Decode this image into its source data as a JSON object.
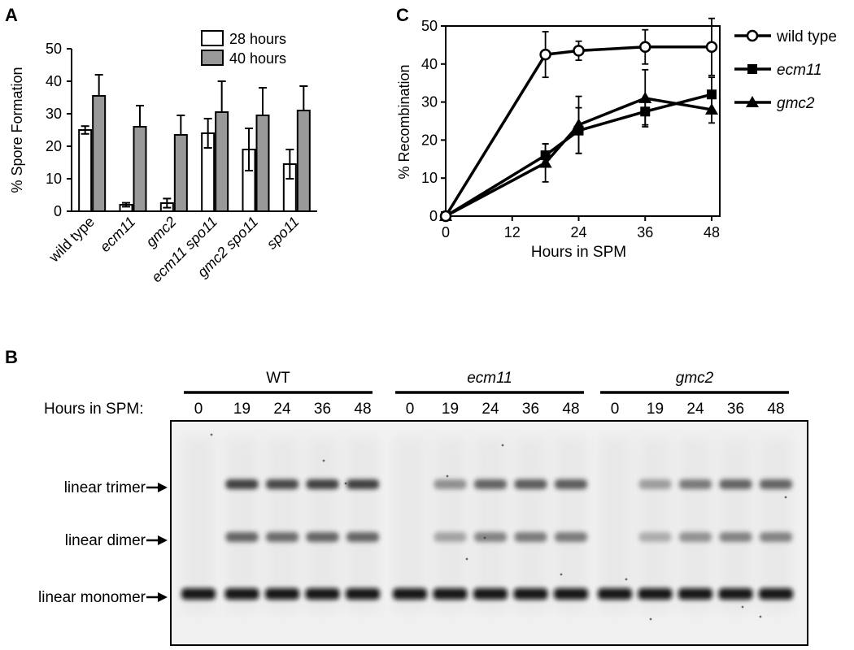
{
  "panels": {
    "A": "A",
    "B": "B",
    "C": "C"
  },
  "chart_data": [
    {
      "type": "bar",
      "panel": "A",
      "ylabel": "% Spore Formation",
      "ylim": [
        0,
        50
      ],
      "yticks": [
        0,
        10,
        20,
        30,
        40,
        50
      ],
      "categories": [
        "wild type",
        "ecm11",
        "gmc2",
        "ecm11 spo11",
        "gmc2 spo11",
        "spo11"
      ],
      "category_italic": [
        false,
        true,
        true,
        true,
        true,
        true
      ],
      "legend_position": "top-right",
      "series": [
        {
          "name": "28 hours",
          "color": "#ffffff",
          "values": [
            25,
            2,
            2.5,
            24,
            19,
            14.5
          ],
          "errors": [
            1.2,
            0.6,
            1.4,
            4.5,
            6.5,
            4.5
          ]
        },
        {
          "name": "40 hours",
          "color": "#999999",
          "values": [
            35.5,
            26,
            23.5,
            30.5,
            29.5,
            31
          ],
          "errors": [
            6.5,
            6.5,
            6,
            9.5,
            8.5,
            7.5
          ]
        }
      ]
    },
    {
      "type": "line",
      "panel": "C",
      "xlabel": "Hours in SPM",
      "ylabel": "% Recombination",
      "xlim": [
        0,
        48
      ],
      "ylim": [
        0,
        50
      ],
      "xticks": [
        0,
        12,
        24,
        36,
        48
      ],
      "yticks": [
        0,
        10,
        20,
        30,
        40,
        50
      ],
      "legend_position": "right",
      "x": [
        0,
        18,
        20,
        24,
        36,
        48
      ],
      "series": [
        {
          "name": "wild type",
          "italic": false,
          "marker": "circle-open",
          "x": [
            0,
            18,
            24,
            36,
            48
          ],
          "values": [
            0,
            42.5,
            43.5,
            44.5,
            44.5
          ],
          "errors": [
            0,
            6,
            2.5,
            4.5,
            7.5
          ]
        },
        {
          "name": "ecm11",
          "italic": true,
          "marker": "square",
          "x": [
            0,
            18,
            24,
            36,
            48
          ],
          "values": [
            0,
            16,
            22.5,
            27.5,
            32
          ],
          "errors": [
            0,
            3,
            6,
            3.5,
            4.5
          ]
        },
        {
          "name": "gmc2",
          "italic": true,
          "marker": "triangle",
          "x": [
            0,
            18,
            24,
            36,
            48
          ],
          "values": [
            0,
            14,
            24,
            31,
            28
          ],
          "errors": [
            0,
            5,
            7.5,
            7.5,
            3.5
          ]
        }
      ]
    }
  ],
  "gel": {
    "hours_label": "Hours in SPM:",
    "groups": [
      {
        "name": "WT",
        "italic": false,
        "hours": [
          "0",
          "19",
          "24",
          "36",
          "48"
        ],
        "intensity": [
          0,
          0.85,
          0.8,
          0.85,
          0.85
        ]
      },
      {
        "name": "ecm11",
        "italic": true,
        "hours": [
          "0",
          "19",
          "24",
          "36",
          "48"
        ],
        "intensity": [
          0,
          0.3,
          0.6,
          0.65,
          0.65
        ]
      },
      {
        "name": "gmc2",
        "italic": true,
        "hours": [
          "0",
          "19",
          "24",
          "36",
          "48"
        ],
        "intensity": [
          0,
          0.2,
          0.45,
          0.6,
          0.6
        ]
      }
    ],
    "band_labels": [
      "linear trimer",
      "linear dimer",
      "linear monomer"
    ]
  }
}
